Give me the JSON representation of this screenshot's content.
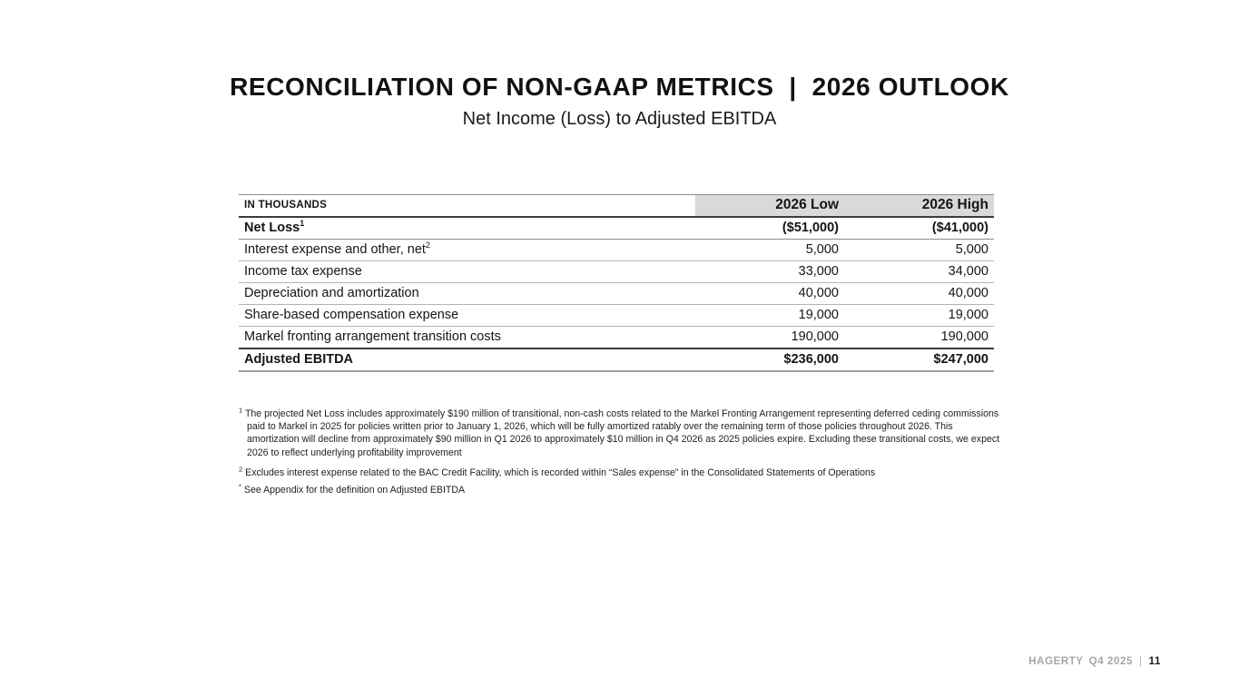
{
  "slide": {
    "title": "RECONCILIATION OF NON-GAAP METRICS  |  2026 OUTLOOK",
    "subtitle": "Net Income (Loss) to Adjusted EBITDA"
  },
  "table": {
    "header": {
      "label": "IN THOUSANDS",
      "col_low": "2026 Low",
      "col_high": "2026 High"
    },
    "rows": [
      {
        "label": "Net Loss",
        "sup": "1",
        "low": "($51,000)",
        "high": "($41,000)"
      },
      {
        "label": "Interest expense and other, net",
        "sup": "2",
        "low": "5,000",
        "high": "5,000"
      },
      {
        "label": "Income tax expense",
        "low": "33,000",
        "high": "34,000"
      },
      {
        "label": "Depreciation and amortization",
        "low": "40,000",
        "high": "40,000"
      },
      {
        "label": "Share-based compensation expense",
        "low": "19,000",
        "high": "19,000"
      },
      {
        "label": "Markel fronting arrangement transition costs",
        "low": "190,000",
        "high": "190,000"
      },
      {
        "label": "Adjusted EBITDA",
        "low": "$236,000",
        "high": "$247,000"
      }
    ]
  },
  "footnotes": [
    {
      "marker": "1",
      "text": "The projected Net Loss includes approximately $190 million of transitional, non-cash costs related to the Markel Fronting Arrangement representing deferred ceding commissions paid to Markel in 2025 for policies written prior to January 1, 2026, which will be fully amortized ratably over the remaining term of those policies throughout 2026. This amortization will decline from approximately $90 million in Q1 2026 to approximately $10 million in Q4 2026 as 2025 policies expire. Excluding these transitional costs, we expect 2026 to reflect underlying profitability improvement"
    },
    {
      "marker": "2",
      "text": "Excludes interest expense related to the BAC Credit Facility, which is recorded within “Sales expense” in the Consolidated Statements of Operations"
    },
    {
      "marker": "*",
      "text": "See Appendix for the definition on Adjusted EBITDA"
    }
  ],
  "footer": {
    "brand": "HAGERTY",
    "period": "Q4 2025",
    "separator": "|",
    "page_number": "11"
  },
  "colors": {
    "header_bg": "#d9d9d9",
    "text": "#151515",
    "footer_gray": "#a6a6a6"
  }
}
